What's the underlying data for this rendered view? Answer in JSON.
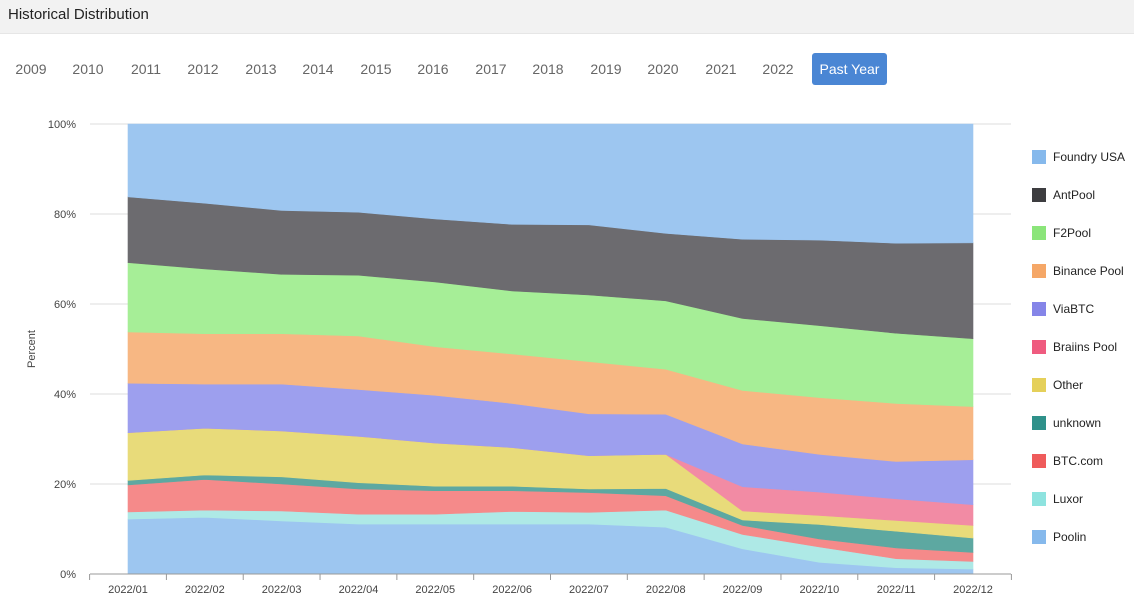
{
  "page_title": "Historical Distribution",
  "year_tabs": [
    {
      "label": "2009"
    },
    {
      "label": "2010"
    },
    {
      "label": "2011"
    },
    {
      "label": "2012"
    },
    {
      "label": "2013"
    },
    {
      "label": "2014"
    },
    {
      "label": "2015"
    },
    {
      "label": "2016"
    },
    {
      "label": "2017"
    },
    {
      "label": "2018"
    },
    {
      "label": "2019"
    },
    {
      "label": "2020"
    },
    {
      "label": "2021"
    },
    {
      "label": "2022"
    },
    {
      "label": "Past Year",
      "active": true
    }
  ],
  "chart_data": {
    "type": "area",
    "stacked": true,
    "ylabel": "Percent",
    "xlabel": "",
    "ylim": [
      0,
      100
    ],
    "y_ticks": [
      "0%",
      "20%",
      "40%",
      "60%",
      "80%",
      "100%"
    ],
    "grid": true,
    "legend_position": "right",
    "categories": [
      "2022/01",
      "2022/02",
      "2022/03",
      "2022/04",
      "2022/05",
      "2022/06",
      "2022/07",
      "2022/08",
      "2022/09",
      "2022/10",
      "2022/11",
      "2022/12"
    ],
    "series": [
      {
        "name": "Poolin",
        "color": "#9dc6f0",
        "values": [
          12.2,
          12.6,
          11.8,
          11.1,
          11.1,
          11.1,
          11.1,
          10.4,
          5.6,
          2.6,
          1.4,
          1.1
        ]
      },
      {
        "name": "Luxor",
        "color": "#aee9e6",
        "values": [
          1.6,
          1.6,
          2.2,
          2.2,
          2.2,
          2.8,
          2.6,
          3.8,
          3.2,
          3.4,
          2.0,
          1.7
        ]
      },
      {
        "name": "BTC.com",
        "color": "#f58a8a",
        "values": [
          6.0,
          6.8,
          6.0,
          5.6,
          5.2,
          4.6,
          4.4,
          3.2,
          2.0,
          1.8,
          2.4,
          2.0
        ]
      },
      {
        "name": "unknown",
        "color": "#5da8a1",
        "values": [
          1.0,
          1.0,
          1.6,
          1.4,
          1.0,
          1.0,
          0.8,
          1.6,
          1.2,
          3.2,
          3.7,
          3.2
        ]
      },
      {
        "name": "Other",
        "color": "#e8db7a",
        "values": [
          10.6,
          10.4,
          10.2,
          10.3,
          9.6,
          8.6,
          7.4,
          7.6,
          2.0,
          2.0,
          2.4,
          2.8
        ]
      },
      {
        "name": "Braiins Pool",
        "color": "#f28ba4",
        "values": [
          0,
          0,
          0,
          0,
          0,
          0,
          0,
          0,
          5.4,
          5.2,
          4.8,
          4.6
        ]
      },
      {
        "name": "ViaBTC",
        "color": "#9d9fee",
        "values": [
          11.0,
          9.8,
          10.4,
          10.4,
          10.6,
          9.8,
          9.3,
          8.9,
          9.5,
          8.4,
          8.3,
          10.0
        ]
      },
      {
        "name": "Binance Pool",
        "color": "#f7b783",
        "values": [
          11.4,
          11.2,
          11.2,
          11.9,
          10.8,
          11.0,
          11.6,
          10.0,
          11.9,
          12.6,
          12.9,
          11.8
        ]
      },
      {
        "name": "F2Pool",
        "color": "#a6ee97",
        "values": [
          15.4,
          14.4,
          13.2,
          13.5,
          14.4,
          14.0,
          14.8,
          15.2,
          16.0,
          16.0,
          15.6,
          15.1
        ]
      },
      {
        "name": "AntPool",
        "color": "#6c6b6f",
        "values": [
          14.6,
          14.6,
          14.2,
          14.0,
          14.0,
          14.8,
          15.6,
          15.0,
          17.6,
          19.0,
          20.0,
          21.3
        ]
      },
      {
        "name": "Foundry USA",
        "color": "#9dc6f0",
        "values": [
          16.2,
          17.6,
          19.2,
          19.6,
          21.1,
          22.3,
          22.4,
          24.3,
          25.6,
          25.8,
          26.5,
          26.4
        ]
      }
    ],
    "legend": [
      {
        "name": "Foundry USA",
        "color": "#86b9ec"
      },
      {
        "name": "AntPool",
        "color": "#3d3d40"
      },
      {
        "name": "F2Pool",
        "color": "#8be57a"
      },
      {
        "name": "Binance Pool",
        "color": "#f5a767"
      },
      {
        "name": "ViaBTC",
        "color": "#8585e8"
      },
      {
        "name": "Braiins Pool",
        "color": "#ef5b7f"
      },
      {
        "name": "Other",
        "color": "#e5d05a"
      },
      {
        "name": "unknown",
        "color": "#2f918a"
      },
      {
        "name": "BTC.com",
        "color": "#ef5b5b"
      },
      {
        "name": "Luxor",
        "color": "#8ee3df"
      },
      {
        "name": "Poolin",
        "color": "#86b9ec"
      }
    ]
  }
}
